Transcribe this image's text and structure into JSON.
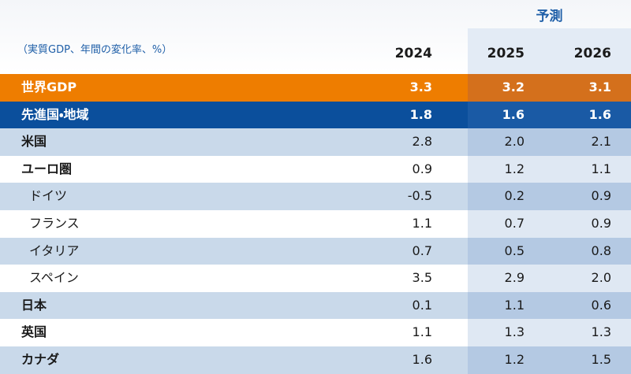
{
  "header": {
    "note": "（実質GDP、年間の変化率、%）",
    "forecast_label": "予測",
    "years": [
      "2024",
      "2025",
      "2026"
    ]
  },
  "rows": [
    {
      "label": "世界GDP",
      "values": [
        "3.3",
        "3.2",
        "3.1"
      ]
    },
    {
      "label": "先進国・地域",
      "values": [
        "1.8",
        "1.6",
        "1.6"
      ]
    },
    {
      "label": "米国",
      "values": [
        "2.8",
        "2.0",
        "2.1"
      ]
    },
    {
      "label": "ユーロ圏",
      "values": [
        "0.9",
        "1.2",
        "1.1"
      ]
    },
    {
      "label": "ドイツ",
      "values": [
        "-0.5",
        "0.2",
        "0.9"
      ]
    },
    {
      "label": "フランス",
      "values": [
        "1.1",
        "0.7",
        "0.9"
      ]
    },
    {
      "label": "イタリア",
      "values": [
        "0.7",
        "0.5",
        "0.8"
      ]
    },
    {
      "label": "スペイン",
      "values": [
        "3.5",
        "2.9",
        "2.0"
      ]
    },
    {
      "label": "日本",
      "values": [
        "0.1",
        "1.1",
        "0.6"
      ]
    },
    {
      "label": "英国",
      "values": [
        "1.1",
        "1.3",
        "1.3"
      ]
    },
    {
      "label": "カナダ",
      "values": [
        "1.6",
        "1.2",
        "1.5"
      ]
    }
  ]
}
